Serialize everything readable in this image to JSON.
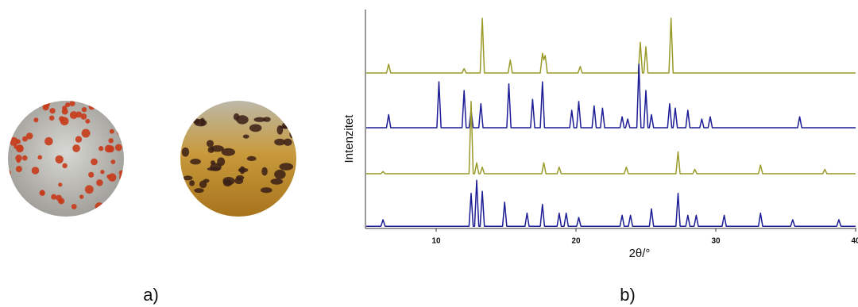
{
  "chart_data": {
    "type": "line",
    "panel_labels": [
      "a)",
      "b)"
    ],
    "xlabel": "2θ/°",
    "ylabel": "Intenzitet",
    "xlim": [
      5,
      40
    ],
    "xticks": [
      10,
      20,
      30,
      40
    ],
    "ylim": [
      0,
      100
    ],
    "series": [
      {
        "color": "#9a9a2a",
        "x": [
          5,
          6.45,
          6.6,
          6.75,
          11.85,
          12.0,
          12.15,
          13.15,
          13.3,
          13.45,
          15.15,
          15.3,
          15.45,
          17.45,
          17.6,
          17.7,
          17.8,
          17.95,
          20.15,
          20.3,
          20.45,
          24.45,
          24.6,
          24.75,
          24.85,
          25.0,
          25.15,
          26.65,
          26.8,
          26.95,
          40
        ],
        "values": [
          71,
          71,
          75,
          71,
          71,
          73,
          71,
          71,
          96,
          71,
          71,
          77,
          71,
          71,
          80,
          77,
          79,
          71,
          71,
          74,
          71,
          71,
          85,
          71,
          71,
          83,
          71,
          71,
          96,
          71,
          71
        ]
      },
      {
        "color": "#1c1c96",
        "x": [
          5,
          6.45,
          6.6,
          6.75,
          10.05,
          10.2,
          10.35,
          11.85,
          12.0,
          12.15,
          12.35,
          12.5,
          12.65,
          13.05,
          13.2,
          13.35,
          15.05,
          15.2,
          15.35,
          16.75,
          16.9,
          17.05,
          17.45,
          17.6,
          17.75,
          19.55,
          19.7,
          19.85,
          20.05,
          20.2,
          20.35,
          21.15,
          21.3,
          21.45,
          21.75,
          21.9,
          22.05,
          23.15,
          23.3,
          23.45,
          23.55,
          23.7,
          23.85,
          24.35,
          24.5,
          24.65,
          24.85,
          25.0,
          25.15,
          25.25,
          25.4,
          25.55,
          26.55,
          26.7,
          26.85,
          26.95,
          27.1,
          27.25,
          27.85,
          28.0,
          28.15,
          28.85,
          29.0,
          29.15,
          29.45,
          29.6,
          29.75,
          35.85,
          36.0,
          36.15,
          40
        ],
        "values": [
          46,
          46,
          52,
          46,
          46,
          67,
          46,
          46,
          63,
          46,
          46,
          54,
          46,
          46,
          57,
          46,
          46,
          66,
          46,
          46,
          59,
          46,
          46,
          67,
          46,
          46,
          54,
          46,
          46,
          58,
          46,
          46,
          56,
          46,
          46,
          55,
          46,
          46,
          51,
          46,
          46,
          50,
          46,
          46,
          75,
          46,
          46,
          63,
          46,
          46,
          52,
          46,
          46,
          57,
          46,
          46,
          55,
          46,
          46,
          54,
          46,
          46,
          50,
          46,
          46,
          51,
          46,
          46,
          51,
          46,
          46
        ]
      },
      {
        "color": "#9a9a2a",
        "x": [
          5,
          6.05,
          6.2,
          6.35,
          12.35,
          12.5,
          12.65,
          12.75,
          12.9,
          13.05,
          13.15,
          13.3,
          13.45,
          17.55,
          17.7,
          17.85,
          18.65,
          18.8,
          18.95,
          23.45,
          23.6,
          23.75,
          27.15,
          27.3,
          27.45,
          28.35,
          28.5,
          28.65,
          33.05,
          33.2,
          33.35,
          37.65,
          37.8,
          37.95,
          40
        ],
        "values": [
          25,
          25,
          26,
          25,
          25,
          58,
          25,
          25,
          30,
          25,
          25,
          28,
          25,
          25,
          30,
          25,
          25,
          28,
          25,
          25,
          28,
          25,
          25,
          35,
          25,
          25,
          27,
          25,
          25,
          29,
          25,
          25,
          27,
          25,
          25
        ]
      },
      {
        "color": "#1c1c96",
        "x": [
          5,
          6.05,
          6.2,
          6.35,
          12.35,
          12.5,
          12.65,
          12.75,
          12.9,
          13.05,
          13.15,
          13.3,
          13.45,
          14.75,
          14.9,
          15.05,
          16.35,
          16.5,
          16.65,
          17.45,
          17.6,
          17.75,
          18.65,
          18.8,
          18.95,
          19.15,
          19.3,
          19.45,
          20.05,
          20.2,
          20.35,
          23.15,
          23.3,
          23.45,
          23.75,
          23.9,
          24.05,
          25.25,
          25.4,
          25.55,
          27.15,
          27.3,
          27.45,
          27.85,
          28.0,
          28.15,
          28.45,
          28.6,
          28.75,
          30.45,
          30.6,
          30.75,
          33.05,
          33.2,
          33.35,
          35.35,
          35.5,
          35.65,
          38.65,
          38.8,
          38.95,
          40
        ],
        "values": [
          1,
          1,
          4,
          1,
          1,
          16,
          1,
          1,
          22,
          1,
          1,
          17,
          1,
          1,
          12,
          1,
          1,
          7,
          1,
          1,
          11,
          1,
          1,
          7,
          1,
          1,
          7,
          1,
          1,
          5,
          1,
          1,
          6,
          1,
          1,
          6,
          1,
          1,
          9,
          1,
          1,
          16,
          1,
          1,
          6,
          1,
          1,
          6,
          1,
          1,
          6,
          1,
          1,
          7,
          1,
          1,
          4,
          1,
          1,
          4,
          1,
          1
        ]
      }
    ]
  }
}
